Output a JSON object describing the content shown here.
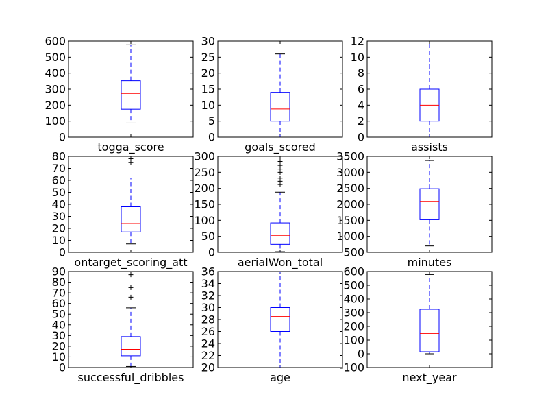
{
  "chart_data": [
    {
      "type": "box",
      "xlabel": "togga_score",
      "ylim": [
        0,
        600
      ],
      "yticks": [
        0,
        100,
        200,
        300,
        400,
        500,
        600
      ],
      "box": {
        "whisker_low": 88,
        "q1": 175,
        "median": 273,
        "q3": 353,
        "whisker_high": 577,
        "outliers": []
      }
    },
    {
      "type": "box",
      "xlabel": "goals_scored",
      "ylim": [
        0,
        30
      ],
      "yticks": [
        0,
        5,
        10,
        15,
        20,
        25,
        30
      ],
      "box": {
        "whisker_low": 0,
        "q1": 5,
        "median": 8.8,
        "q3": 14,
        "whisker_high": 26,
        "outliers": []
      }
    },
    {
      "type": "box",
      "xlabel": "assists",
      "ylim": [
        0,
        12
      ],
      "yticks": [
        0,
        2,
        4,
        6,
        8,
        10,
        12
      ],
      "box": {
        "whisker_low": 0,
        "q1": 2,
        "median": 4,
        "q3": 6,
        "whisker_high": 12,
        "outliers": []
      }
    },
    {
      "type": "box",
      "xlabel": "ontarget_scoring_att",
      "ylim": [
        0,
        80
      ],
      "yticks": [
        0,
        10,
        20,
        30,
        40,
        50,
        60,
        70,
        80
      ],
      "box": {
        "whisker_low": 7,
        "q1": 17,
        "median": 24,
        "q3": 38,
        "whisker_high": 62,
        "outliers": [
          75,
          78
        ]
      }
    },
    {
      "type": "box",
      "xlabel": "aerialWon_total",
      "ylim": [
        0,
        300
      ],
      "yticks": [
        0,
        50,
        100,
        150,
        200,
        250,
        300
      ],
      "box": {
        "whisker_low": 2,
        "q1": 25,
        "median": 53,
        "q3": 92,
        "whisker_high": 188,
        "outliers": [
          212,
          222,
          232,
          250,
          260,
          272,
          284
        ]
      }
    },
    {
      "type": "box",
      "xlabel": "minutes",
      "ylim": [
        500,
        3500
      ],
      "yticks": [
        500,
        1000,
        1500,
        2000,
        2500,
        3000,
        3500
      ],
      "box": {
        "whisker_low": 700,
        "q1": 1520,
        "median": 2090,
        "q3": 2490,
        "whisker_high": 3370,
        "outliers": []
      }
    },
    {
      "type": "box",
      "xlabel": "successful_dribbles",
      "ylim": [
        0,
        90
      ],
      "yticks": [
        0,
        10,
        20,
        30,
        40,
        50,
        60,
        70,
        80,
        90
      ],
      "box": {
        "whisker_low": 1,
        "q1": 11,
        "median": 17,
        "q3": 29,
        "whisker_high": 56,
        "outliers": [
          66,
          75,
          87
        ]
      }
    },
    {
      "type": "box",
      "xlabel": "age",
      "ylim": [
        20,
        36
      ],
      "yticks": [
        20,
        22,
        24,
        26,
        28,
        30,
        32,
        34,
        36
      ],
      "box": {
        "whisker_low": 20,
        "q1": 26,
        "median": 28.5,
        "q3": 30,
        "whisker_high": 36,
        "outliers": []
      }
    },
    {
      "type": "box",
      "xlabel": "next_year",
      "ylim": [
        -100,
        600
      ],
      "yticks": [
        -100,
        0,
        100,
        200,
        300,
        400,
        500,
        600
      ],
      "box": {
        "whisker_low": 0,
        "q1": 15,
        "median": 148,
        "q3": 325,
        "whisker_high": 578,
        "outliers": []
      }
    }
  ]
}
